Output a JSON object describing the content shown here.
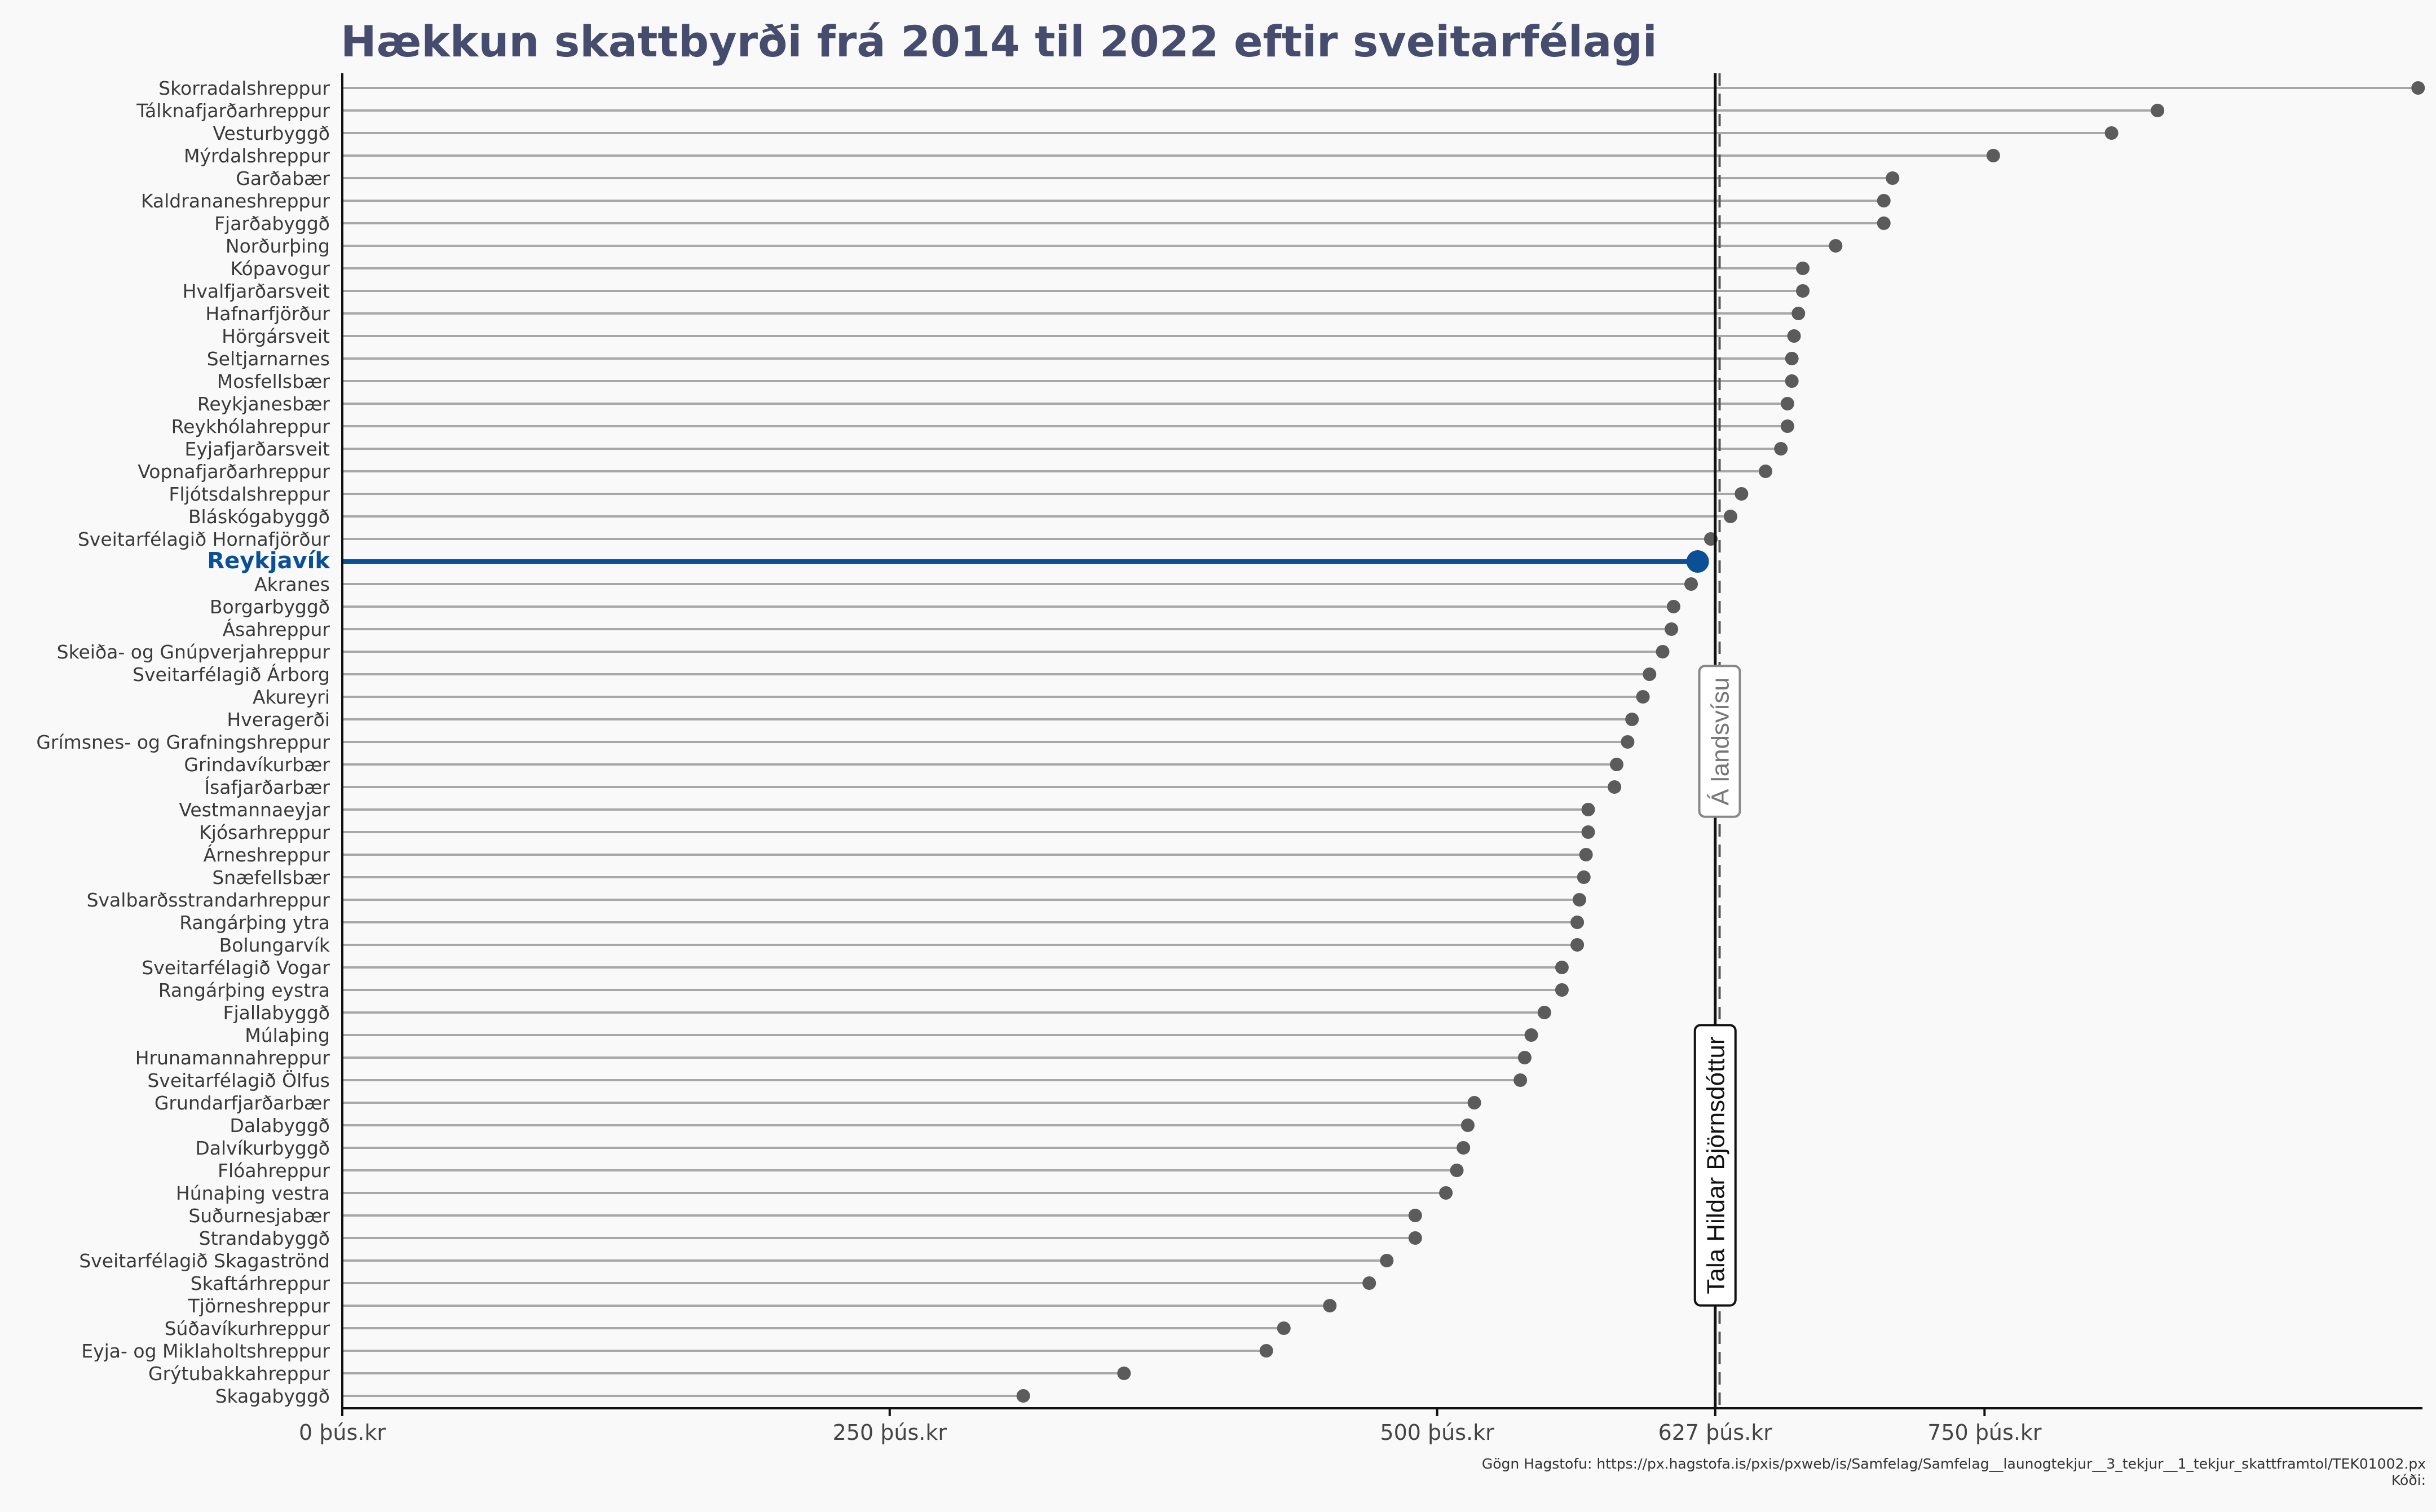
{
  "chart_data": {
    "type": "lollipop",
    "title": "Hækkun skattbyrði frá 2014 til 2022 eftir sveitarfélagi",
    "xlim": [
      0,
      950
    ],
    "x_ticks": [
      {
        "value": 0,
        "label": "0 þús.kr"
      },
      {
        "value": 250,
        "label": "250 þús.kr"
      },
      {
        "value": 500,
        "label": "500 þús.kr"
      },
      {
        "value": 627,
        "label": "627 þús.kr"
      },
      {
        "value": 750,
        "label": "750 þús.kr"
      }
    ],
    "highlight": "Reykjavík",
    "highlight_color": "#0b4f96",
    "point_color": "#5b5b5b",
    "reference_lines": [
      {
        "value": 627,
        "label": "Tala Hildar Björnsdóttur",
        "style": "solid"
      },
      {
        "value": 629,
        "label": "Á landsvísu",
        "style": "dashed"
      }
    ],
    "points": [
      {
        "name": "Skorradalshreppur",
        "value": 948
      },
      {
        "name": "Tálknafjarðarhreppur",
        "value": 829
      },
      {
        "name": "Vesturbyggð",
        "value": 808
      },
      {
        "name": "Mýrdalshreppur",
        "value": 754
      },
      {
        "name": "Garðabær",
        "value": 708
      },
      {
        "name": "Kaldrananeshreppur",
        "value": 704
      },
      {
        "name": "Fjarðabyggð",
        "value": 704
      },
      {
        "name": "Norðurþing",
        "value": 682
      },
      {
        "name": "Kópavogur",
        "value": 667
      },
      {
        "name": "Hvalfjarðarsveit",
        "value": 667
      },
      {
        "name": "Hafnarfjörður",
        "value": 665
      },
      {
        "name": "Hörgársveit",
        "value": 663
      },
      {
        "name": "Seltjarnarnes",
        "value": 662
      },
      {
        "name": "Mosfellsbær",
        "value": 662
      },
      {
        "name": "Reykjanesbær",
        "value": 660
      },
      {
        "name": "Reykhólahreppur",
        "value": 660
      },
      {
        "name": "Eyjafjarðarsveit",
        "value": 657
      },
      {
        "name": "Vopnafjarðarhreppur",
        "value": 650
      },
      {
        "name": "Fljótsdalshreppur",
        "value": 639
      },
      {
        "name": "Bláskógabyggð",
        "value": 634
      },
      {
        "name": "Sveitarfélagið Hornafjörður",
        "value": 625
      },
      {
        "name": "Reykjavík",
        "value": 619
      },
      {
        "name": "Akranes",
        "value": 616
      },
      {
        "name": "Borgarbyggð",
        "value": 608
      },
      {
        "name": "Ásahreppur",
        "value": 607
      },
      {
        "name": "Skeiða- og Gnúpverjahreppur",
        "value": 603
      },
      {
        "name": "Sveitarfélagið Árborg",
        "value": 597
      },
      {
        "name": "Akureyri",
        "value": 594
      },
      {
        "name": "Hveragerði",
        "value": 589
      },
      {
        "name": "Grímsnes- og Grafningshreppur",
        "value": 587
      },
      {
        "name": "Grindavíkurbær",
        "value": 582
      },
      {
        "name": "Ísafjarðarbær",
        "value": 581
      },
      {
        "name": "Vestmannaeyjar",
        "value": 569
      },
      {
        "name": "Kjósarhreppur",
        "value": 569
      },
      {
        "name": "Árneshreppur",
        "value": 568
      },
      {
        "name": "Snæfellsbær",
        "value": 567
      },
      {
        "name": "Svalbarðsstrandarhreppur",
        "value": 565
      },
      {
        "name": "Rangárþing ytra",
        "value": 564
      },
      {
        "name": "Bolungarvík",
        "value": 564
      },
      {
        "name": "Sveitarfélagið Vogar",
        "value": 557
      },
      {
        "name": "Rangárþing eystra",
        "value": 557
      },
      {
        "name": "Fjallabyggð",
        "value": 549
      },
      {
        "name": "Múlaþing",
        "value": 543
      },
      {
        "name": "Hrunamannahreppur",
        "value": 540
      },
      {
        "name": "Sveitarfélagið Ölfus",
        "value": 538
      },
      {
        "name": "Grundarfjarðarbær",
        "value": 517
      },
      {
        "name": "Dalabyggð",
        "value": 514
      },
      {
        "name": "Dalvíkurbyggð",
        "value": 512
      },
      {
        "name": "Flóahreppur",
        "value": 509
      },
      {
        "name": "Húnaþing vestra",
        "value": 504
      },
      {
        "name": "Suðurnesjabær",
        "value": 490
      },
      {
        "name": "Strandabyggð",
        "value": 490
      },
      {
        "name": "Sveitarfélagið Skagaströnd",
        "value": 477
      },
      {
        "name": "Skaftárhreppur",
        "value": 469
      },
      {
        "name": "Tjörneshreppur",
        "value": 451
      },
      {
        "name": "Súðavíkurhreppur",
        "value": 430
      },
      {
        "name": "Eyja- og Miklaholtshreppur",
        "value": 422
      },
      {
        "name": "Grýtubakkahreppur",
        "value": 357
      },
      {
        "name": "Skagabyggð",
        "value": 311
      }
    ]
  },
  "source": {
    "line1": "Gögn Hagstofu: https://px.hagstofa.is/pxis/pxweb/is/Samfelag/Samfelag__launogtekjur__3_tekjur__1_tekjur_skattframtol/TEK01002.px",
    "line2": "Kóði:"
  }
}
